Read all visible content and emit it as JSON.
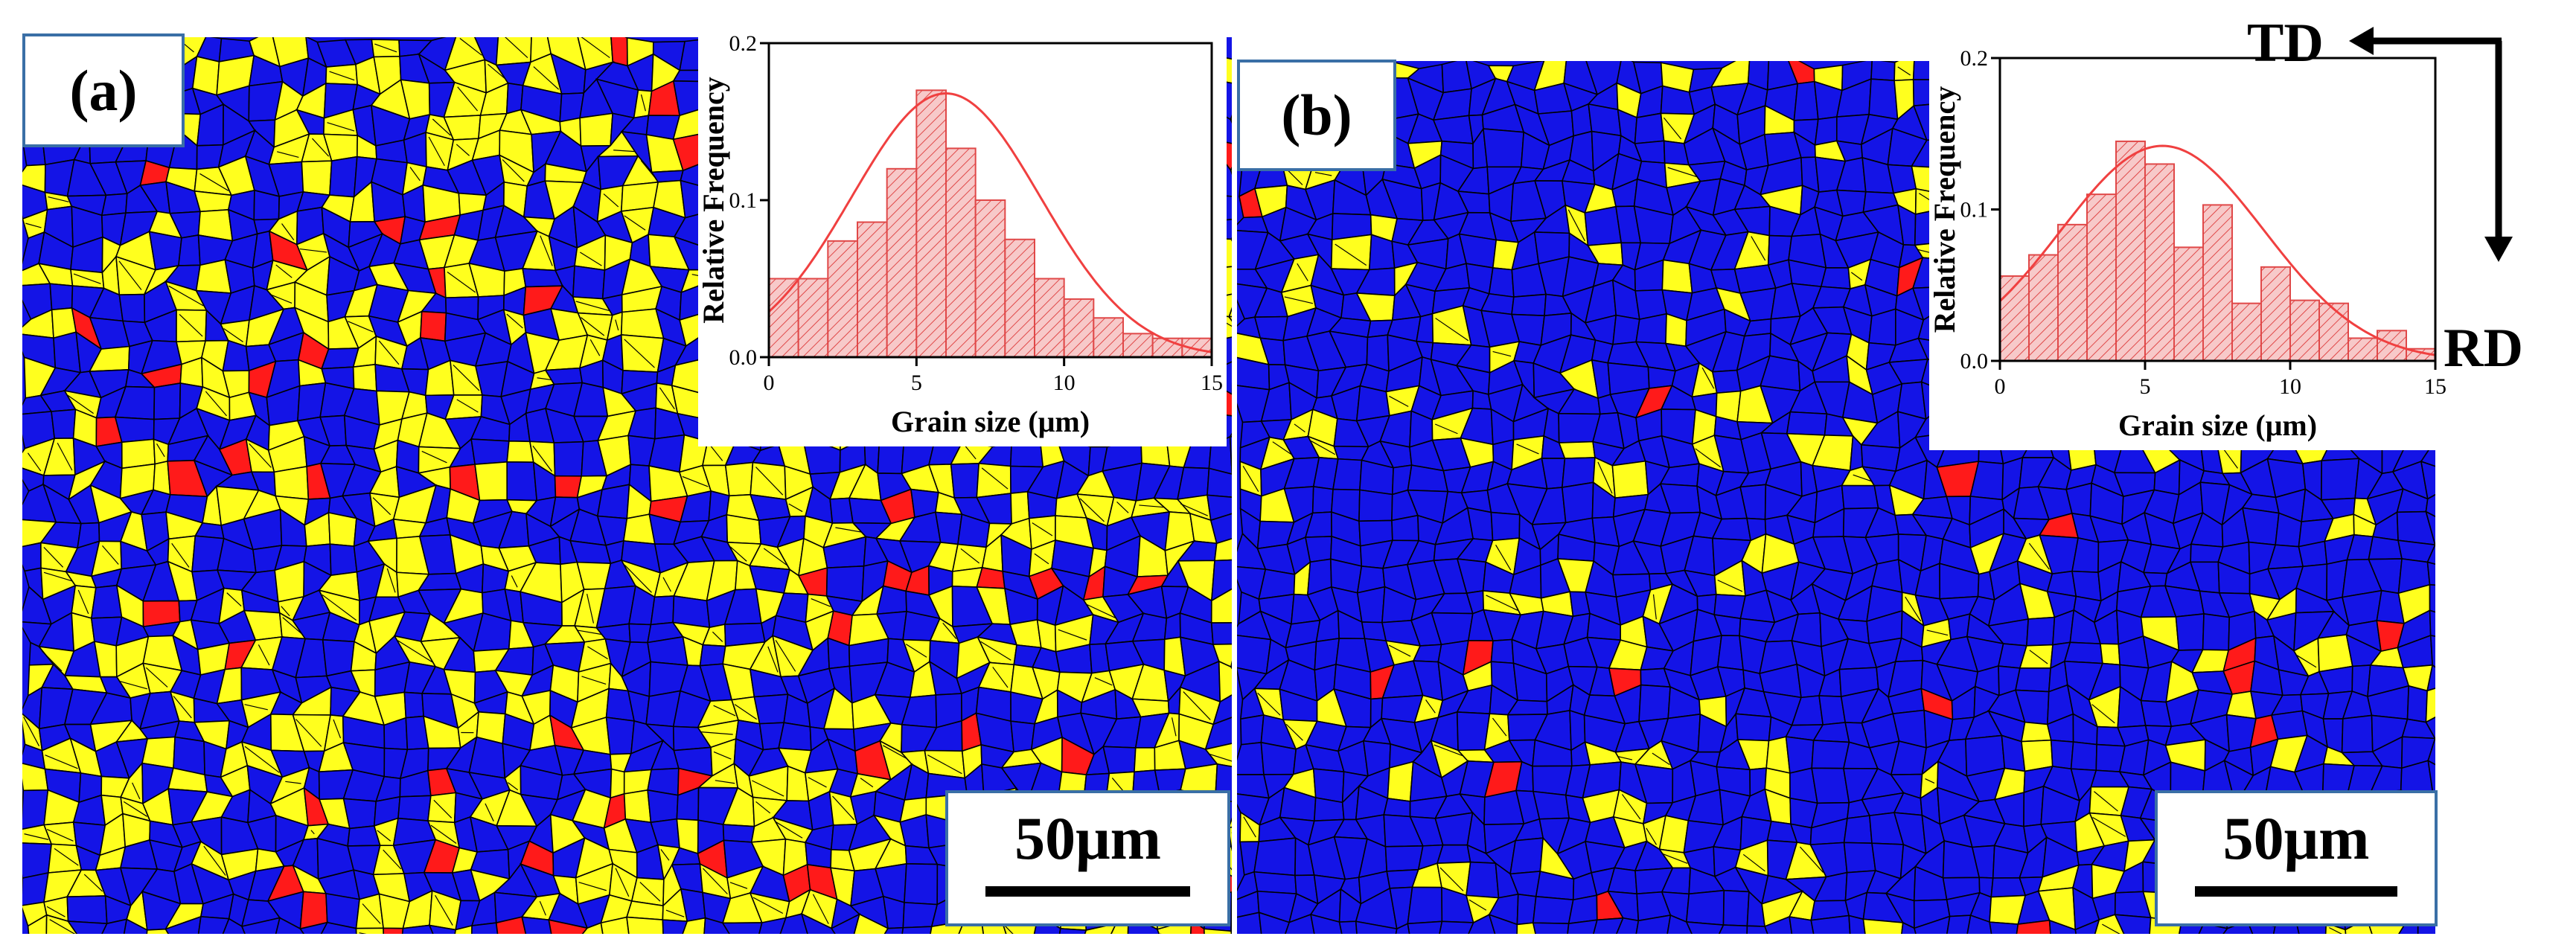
{
  "panels": [
    {
      "label": "(a)",
      "scale_text": "50μm"
    },
    {
      "label": "(b)",
      "scale_text": "50μm"
    }
  ],
  "orientation": {
    "td_label": "TD",
    "rd_label": "RD"
  },
  "colors": {
    "blue_phase": "#1414e6",
    "yellow_phase": "#ffff1e",
    "red_phase": "#ff1a1a",
    "boundary": "#000000",
    "histogram_fill": "#f7c9c9",
    "histogram_edge": "#e04848",
    "fit_curve": "#f04040"
  },
  "chart_data": [
    {
      "type": "bar",
      "panel": "a",
      "xlabel": "Grain size (μm)",
      "ylabel": "Relative Frequency",
      "xlim": [
        0,
        15
      ],
      "ylim": [
        0,
        0.2
      ],
      "xticks": [
        "0",
        "5",
        "10",
        "15"
      ],
      "yticks": [
        "0.0",
        "0.1",
        "0.2"
      ],
      "bin_width": 1,
      "bin_starts": [
        0,
        1,
        2,
        3,
        4,
        5,
        6,
        7,
        8,
        9,
        10,
        11,
        12,
        13,
        14
      ],
      "values": [
        0.05,
        0.05,
        0.074,
        0.086,
        0.12,
        0.17,
        0.133,
        0.1,
        0.075,
        0.05,
        0.037,
        0.025,
        0.015,
        0.012,
        0.012
      ],
      "fit": {
        "type": "gaussian",
        "mean": 6.0,
        "sigma": 3.2,
        "peak": 0.168
      }
    },
    {
      "type": "bar",
      "panel": "b",
      "xlabel": "Grain size (μm)",
      "ylabel": "Relative Frequency",
      "xlim": [
        0,
        15
      ],
      "ylim": [
        0,
        0.2
      ],
      "xticks": [
        "0",
        "5",
        "10",
        "15"
      ],
      "yticks": [
        "0.0",
        "0.1",
        "0.2"
      ],
      "bin_width": 1,
      "bin_starts": [
        0,
        1,
        2,
        3,
        4,
        5,
        6,
        7,
        8,
        9,
        10,
        11,
        12,
        13,
        14
      ],
      "values": [
        0.056,
        0.07,
        0.09,
        0.11,
        0.145,
        0.13,
        0.075,
        0.103,
        0.038,
        0.062,
        0.04,
        0.038,
        0.015,
        0.02,
        0.008
      ],
      "fit": {
        "type": "gaussian",
        "mean": 5.6,
        "sigma": 3.5,
        "peak": 0.142
      }
    }
  ]
}
